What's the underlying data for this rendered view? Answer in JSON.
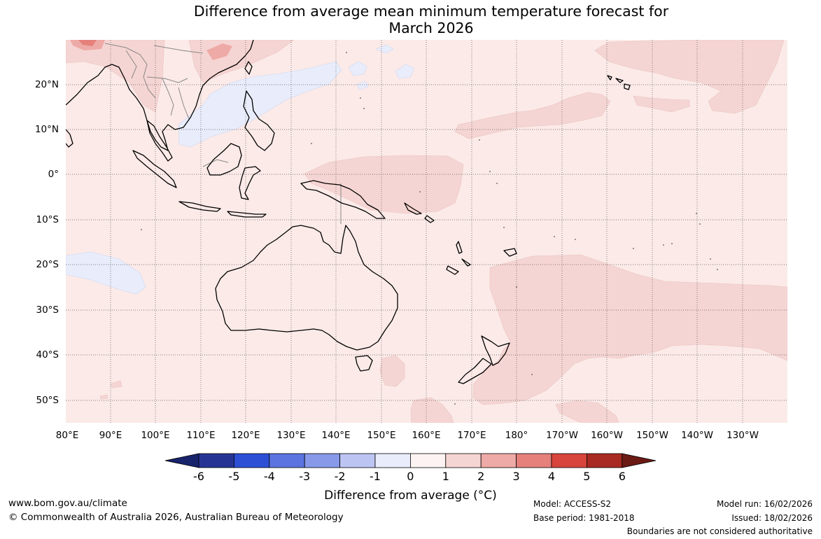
{
  "title": {
    "line1": "Difference from average mean minimum temperature forecast for",
    "line2": "March 2026"
  },
  "map": {
    "region": "Indo-Pacific and Australia",
    "lat_labels": [
      "20°N",
      "10°N",
      "0°",
      "10°S",
      "20°S",
      "30°S",
      "40°S",
      "50°S"
    ],
    "lon_labels": [
      "80°E",
      "90°E",
      "100°E",
      "110°E",
      "120°E",
      "130°E",
      "140°E",
      "150°E",
      "160°E",
      "170°E",
      "180°",
      "170°W",
      "160°W",
      "150°W",
      "140°W",
      "130°W"
    ],
    "background_anomaly": "0 to 1",
    "colors": {
      "ocean_base": "#fbeae8",
      "anom_1_2": "#f5d5d3",
      "anom_2_3": "#eeaaa6",
      "anom_3_4": "#e5807a",
      "anom_neg": "#e9edfb",
      "coast": "#000000",
      "border": "#888888"
    }
  },
  "colorbar": {
    "title": "Difference from average (°C)",
    "ticks": [
      "-6",
      "-5",
      "-4",
      "-3",
      "-2",
      "-1",
      "0",
      "1",
      "2",
      "3",
      "4",
      "5",
      "6"
    ],
    "colors": [
      "#253494",
      "#2c4fd6",
      "#5b74e0",
      "#8799e8",
      "#bcc5f2",
      "#e9edfb",
      "#fdf3f2",
      "#f5d5d3",
      "#eeaaa6",
      "#e5807a",
      "#d7453d",
      "#a82a22"
    ],
    "extend_low": "#17236b",
    "extend_high": "#6b1a14"
  },
  "footer": {
    "url": "www.bom.gov.au/climate",
    "copyright": "© Commonwealth of Australia 2026, Australian Bureau of Meteorology",
    "model": "Model: ACCESS-S2",
    "base_period": "Base period: 1981-2018",
    "model_run": "Model run: 16/02/2026",
    "issued": "Issued: 18/02/2026",
    "disclaimer": "Boundaries are not considered authoritative"
  }
}
